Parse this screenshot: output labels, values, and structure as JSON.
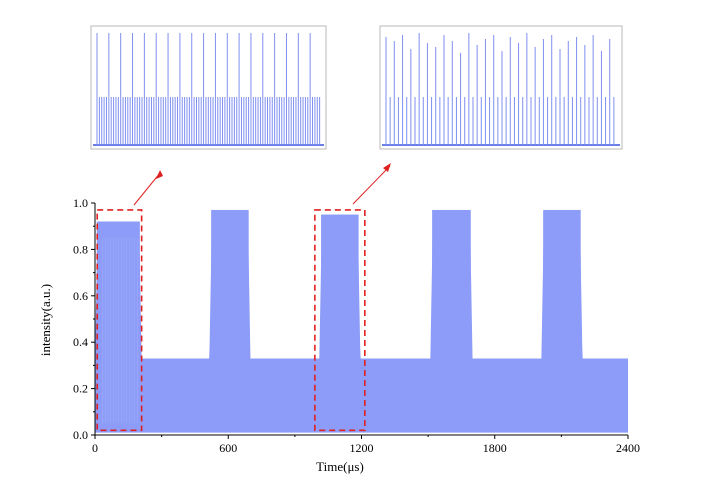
{
  "chart_data": {
    "type": "area",
    "xlabel": "Time(μs)",
    "ylabel": "intensity(a.u.)",
    "xlim": [
      0,
      2400
    ],
    "ylim": [
      0,
      1.0
    ],
    "x_ticks": [
      0,
      600,
      1200,
      1800,
      2400
    ],
    "x_tick_labels": [
      "0",
      "600",
      "1200",
      "1800",
      "2400"
    ],
    "y_ticks": [
      0.0,
      0.2,
      0.4,
      0.6,
      0.8,
      1.0
    ],
    "y_tick_labels": [
      "0.0",
      "0.2",
      "0.4",
      "0.6",
      "0.8",
      "1.0"
    ],
    "series_color": "#8c9cf8",
    "envelope": {
      "low_level": 0.33,
      "low_floor": 0.01,
      "pulses": [
        {
          "start": 0,
          "end": 210,
          "level": 0.92
        },
        {
          "start": 515,
          "end": 700,
          "level": 0.97
        },
        {
          "start": 1010,
          "end": 1195,
          "level": 0.95
        },
        {
          "start": 1510,
          "end": 1700,
          "level": 0.97
        },
        {
          "start": 2010,
          "end": 2195,
          "level": 0.97
        }
      ]
    },
    "highlight_boxes": [
      {
        "x_range": [
          10,
          210
        ],
        "y_range": [
          0.02,
          0.97
        ]
      },
      {
        "x_range": [
          990,
          1215
        ],
        "y_range": [
          0.02,
          0.97
        ]
      }
    ],
    "insets": [
      {
        "name": "inset-left",
        "spike_count": 19,
        "minor_per_major": 4
      },
      {
        "name": "inset-right",
        "spike_count": 28,
        "minor_per_major": 1
      }
    ],
    "highlight_color": "#e02020"
  }
}
